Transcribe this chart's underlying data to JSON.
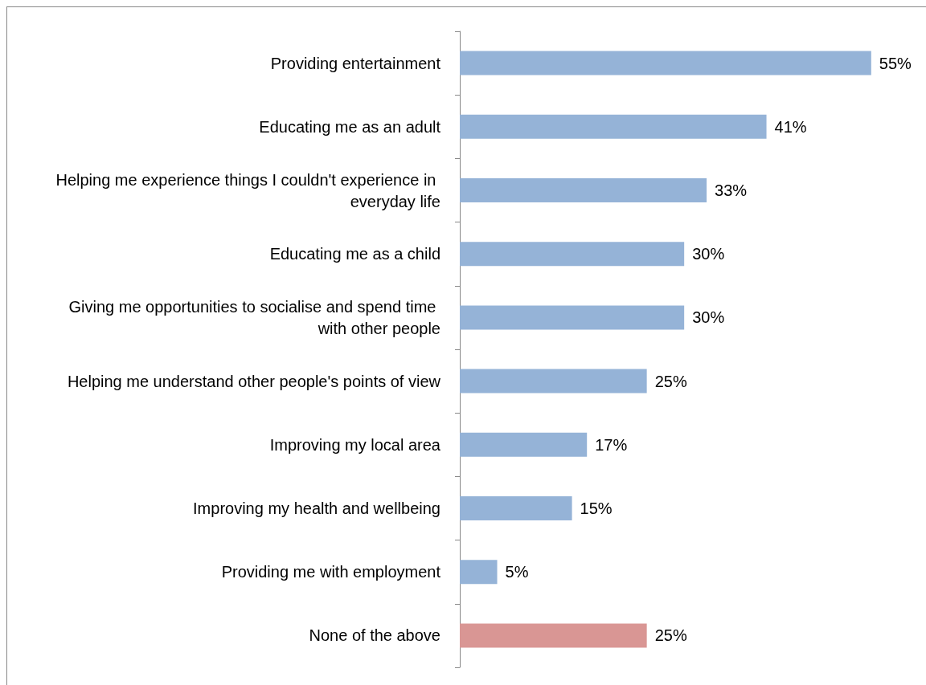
{
  "chart_data": {
    "type": "bar",
    "orientation": "horizontal",
    "categories": [
      "Providing entertainment",
      "Educating me as an adult",
      "Helping me experience things I couldn't experience in everyday life",
      "Educating me as a child",
      "Giving me opportunities to socialise and spend time with other people",
      "Helping me understand other people's points of view",
      "Improving my local area",
      "Improving my health and wellbeing",
      "Providing me with employment",
      "None of the above"
    ],
    "values": [
      55,
      41,
      33,
      30,
      30,
      25,
      17,
      15,
      5,
      25
    ],
    "value_labels": [
      "55%",
      "41%",
      "33%",
      "30%",
      "30%",
      "25%",
      "17%",
      "15%",
      "5%",
      "25%"
    ],
    "colors": [
      "#95b3d7",
      "#95b3d7",
      "#95b3d7",
      "#95b3d7",
      "#95b3d7",
      "#95b3d7",
      "#95b3d7",
      "#95b3d7",
      "#95b3d7",
      "#d99694"
    ],
    "grid": false
  }
}
